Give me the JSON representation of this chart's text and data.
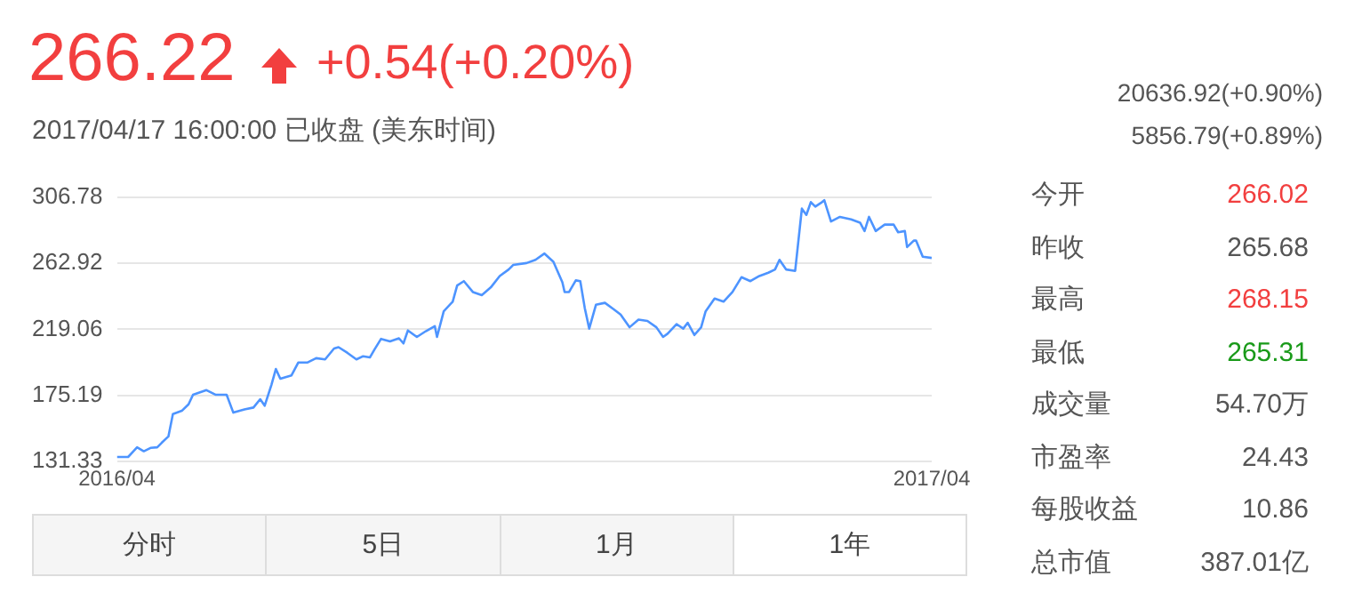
{
  "chart_data": {
    "type": "line",
    "title": "266.22",
    "subtitle": "2017/04/17 16:00:00   已收盘 (美东时间)",
    "annotations": [
      "+0.54(+0.20%)",
      "20636.92(+0.90%)",
      "5856.79(+0.89%)",
      "分时",
      "5日",
      "1月",
      "1年",
      "今开",
      "266.02",
      "昨收",
      "265.68",
      "最高",
      "268.15",
      "最低",
      "265.31",
      "成交量",
      "54.70万",
      "市盈率",
      "24.43",
      "每股收益",
      "10.86",
      "总市值",
      "387.01亿"
    ],
    "x": [
      "2016-04-18",
      "2016-04-23",
      "2016-04-27",
      "2016-04-30",
      "2016-05-03",
      "2016-05-06",
      "2016-05-08",
      "2016-05-11",
      "2016-05-13",
      "2016-05-17",
      "2016-05-20",
      "2016-05-22",
      "2016-05-28",
      "2016-06-01",
      "2016-06-06",
      "2016-06-09",
      "2016-06-14",
      "2016-06-18",
      "2016-06-21",
      "2016-06-23",
      "2016-06-26",
      "2016-06-28",
      "2016-06-30",
      "2016-07-05",
      "2016-07-08",
      "2016-07-12",
      "2016-07-16",
      "2016-07-20",
      "2016-07-24",
      "2016-07-26",
      "2016-07-30",
      "2016-08-03",
      "2016-08-06",
      "2016-08-09",
      "2016-08-11",
      "2016-08-14",
      "2016-08-18",
      "2016-08-22",
      "2016-08-24",
      "2016-08-26",
      "2016-08-30",
      "2016-09-03",
      "2016-09-07",
      "2016-09-08",
      "2016-09-11",
      "2016-09-15",
      "2016-09-17",
      "2016-09-20",
      "2016-09-24",
      "2016-09-28",
      "2016-10-02",
      "2016-10-06",
      "2016-10-10",
      "2016-10-12",
      "2016-10-18",
      "2016-10-22",
      "2016-10-26",
      "2016-10-30",
      "2016-11-03",
      "2016-11-04",
      "2016-11-06",
      "2016-11-09",
      "2016-11-11",
      "2016-11-13",
      "2016-11-15",
      "2016-11-18",
      "2016-11-22",
      "2016-11-26",
      "2016-11-29",
      "2016-12-03",
      "2016-12-07",
      "2016-12-11",
      "2016-12-15",
      "2016-12-18",
      "2016-12-20",
      "2016-12-24",
      "2016-12-27",
      "2016-12-29",
      "2017-01-01",
      "2017-01-04",
      "2017-01-06",
      "2017-01-10",
      "2017-01-14",
      "2017-01-18",
      "2017-01-22",
      "2017-01-26",
      "2017-01-30",
      "2017-02-03",
      "2017-02-06",
      "2017-02-08",
      "2017-02-11",
      "2017-02-15",
      "2017-02-18",
      "2017-02-20",
      "2017-02-22",
      "2017-02-24",
      "2017-02-27",
      "2017-02-28",
      "2017-03-03",
      "2017-03-07",
      "2017-03-12",
      "2017-03-16",
      "2017-03-18",
      "2017-03-20",
      "2017-03-23",
      "2017-03-27",
      "2017-03-31",
      "2017-04-02",
      "2017-04-05",
      "2017-04-06",
      "2017-04-09",
      "2017-04-10",
      "2017-04-13",
      "2017-04-17"
    ],
    "series": [
      {
        "color": "#4d94ff",
        "values": [
          134.4,
          134.4,
          140.8,
          138.2,
          140.4,
          140.8,
          143.8,
          148.0,
          162.9,
          165.0,
          169.3,
          175.7,
          178.7,
          175.7,
          175.7,
          163.8,
          165.9,
          167.2,
          172.7,
          168.4,
          182.1,
          192.7,
          186.3,
          188.5,
          197.0,
          197.0,
          199.9,
          199.1,
          206.3,
          207.2,
          203.4,
          199.1,
          201.2,
          200.4,
          205.5,
          212.7,
          211.0,
          213.1,
          209.7,
          218.3,
          214.0,
          217.8,
          221.2,
          214.0,
          231.0,
          237.4,
          248.1,
          251.0,
          243.8,
          241.7,
          246.8,
          254.4,
          258.7,
          261.7,
          263.0,
          265.1,
          269.3,
          263.8,
          250.2,
          243.8,
          243.8,
          251.5,
          251.0,
          233.2,
          219.5,
          235.3,
          236.6,
          232.3,
          228.9,
          220.4,
          225.5,
          224.6,
          220.4,
          214.0,
          216.1,
          222.5,
          219.5,
          223.4,
          215.3,
          220.4,
          231.0,
          239.5,
          237.4,
          243.8,
          253.6,
          251.0,
          254.4,
          256.6,
          258.7,
          265.1,
          258.7,
          257.8,
          299.1,
          294.9,
          303.4,
          300.4,
          303.4,
          304.7,
          290.6,
          293.6,
          291.9,
          289.8,
          284.2,
          293.6,
          284.2,
          288.5,
          288.5,
          283.4,
          284.2,
          273.6,
          277.9,
          277.9,
          267.2,
          266.4
        ]
      }
    ],
    "xlim": [
      "2016-04-18",
      "2017-04-17"
    ],
    "xticks": [
      {
        "value": "2016-04-18",
        "label": "2016/04"
      },
      {
        "value": "2017-04-17",
        "label": "2017/04"
      }
    ],
    "ylim": [
      131.33,
      306.78
    ],
    "yticks": [
      131.33,
      175.19,
      219.06,
      262.92,
      306.78
    ],
    "grid": "y",
    "legend": false,
    "marker": "none",
    "line_style": "solid"
  }
}
